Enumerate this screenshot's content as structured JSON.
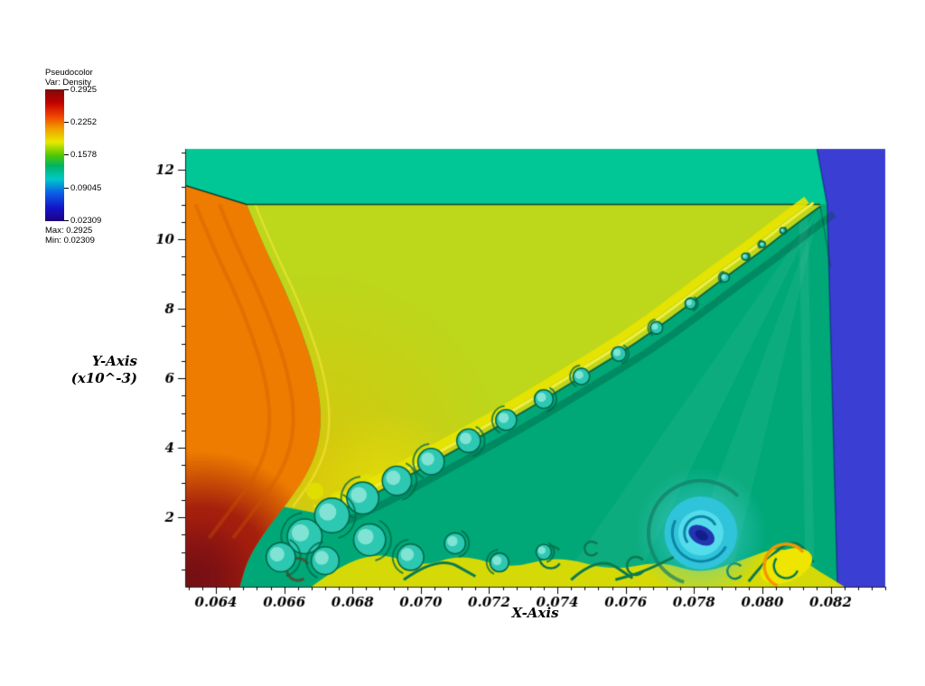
{
  "legend": {
    "title": "Pseudocolor",
    "subtitle": "Var: Density",
    "ticks": [
      "0.2925",
      "0.2252",
      "0.1578",
      "0.09045",
      "0.02309"
    ],
    "max_label": "Max: 0.2925",
    "min_label": "Min: 0.02309"
  },
  "chart_data": {
    "type": "heatmap",
    "title": "",
    "variable": "Density",
    "xlabel": "X-Axis",
    "ylabel_line1": "Y-Axis",
    "ylabel_line2": "(x10^-3)",
    "xlim": [
      0.0631,
      0.0836
    ],
    "ylim": [
      0,
      12.6
    ],
    "x_major_ticks": [
      0.064,
      0.066,
      0.068,
      0.07,
      0.072,
      0.074,
      0.076,
      0.078,
      0.08,
      0.082
    ],
    "x_tick_labels": [
      "0.064",
      "0.066",
      "0.068",
      "0.070",
      "0.072",
      "0.074",
      "0.076",
      "0.078",
      "0.080",
      "0.082"
    ],
    "x_minor_step": 0.0004,
    "y_major_ticks": [
      2,
      4,
      6,
      8,
      10,
      12
    ],
    "y_tick_labels": [
      "2",
      "4",
      "6",
      "8",
      "10",
      "12"
    ],
    "y_minor_step": 0.5,
    "value_min": 0.02309,
    "value_max": 0.2925,
    "colormap_stops": [
      [
        0,
        "#1c0080"
      ],
      [
        0.1,
        "#1414c8"
      ],
      [
        0.22,
        "#0a64e6"
      ],
      [
        0.32,
        "#00c8c8"
      ],
      [
        0.42,
        "#00b464"
      ],
      [
        0.5,
        "#50c800"
      ],
      [
        0.6,
        "#e8e800"
      ],
      [
        0.7,
        "#f0a000"
      ],
      [
        0.8,
        "#f04000"
      ],
      [
        0.9,
        "#c00000"
      ],
      [
        1,
        "#7d0b0b"
      ]
    ],
    "description": "Double Mach reflection density pseudocolor: curved bow shock with orange/dark-red high-density region at left, chartreuse post-shock wedge, teal undisturbed band above y=11, indigo low-density column at right (x>0.082), Kelvin-Helmholtz vortex chain along the slip line from the triple point near (0.0817, 11), and a cyan low-density vortex with dark-blue core near (0.078, 1.6).",
    "features": {
      "ambient_green": "#00a878",
      "top_band_color": "#00c795",
      "top_band": {
        "y_bottom": 11.0,
        "left_tip_x": 0.0649,
        "left_edge_y": 11.55
      },
      "right_band_color": "#3a3ed2",
      "right_band": {
        "x_top": 0.0816,
        "x_at_11": 0.0819,
        "x_bottom": 0.0822
      },
      "wedge_color": "#bdd71b",
      "slip_fringe": "#e8e400",
      "slip_fringe_bright": "#f2ee40",
      "slip_dark": "rgba(0,80,55,0.8)",
      "shock_curve": [
        [
          0.0649,
          11.0
        ],
        [
          0.0654,
          9.8
        ],
        [
          0.066,
          8.6
        ],
        [
          0.0665,
          7.4
        ],
        [
          0.0669,
          6.2
        ],
        [
          0.0671,
          5.0
        ],
        [
          0.067,
          4.0
        ],
        [
          0.0666,
          3.1
        ],
        [
          0.066,
          2.3
        ],
        [
          0.0653,
          1.4
        ],
        [
          0.0649,
          0.7
        ],
        [
          0.0647,
          0.0
        ]
      ],
      "wedge_left_points": 9,
      "slip_line": [
        [
          0.0817,
          10.95
        ],
        [
          0.0808,
          10.3
        ],
        [
          0.0799,
          9.6
        ],
        [
          0.0789,
          8.9
        ],
        [
          0.0777,
          8.0
        ],
        [
          0.0763,
          7.0
        ],
        [
          0.0748,
          6.1
        ],
        [
          0.0733,
          5.2
        ],
        [
          0.0718,
          4.35
        ],
        [
          0.0704,
          3.6
        ],
        [
          0.0691,
          2.9
        ],
        [
          0.0681,
          2.4
        ],
        [
          0.0673,
          2.05
        ]
      ],
      "orange_base": "#ee7c00",
      "orange_streak": "rgba(205,90,0,0.35)",
      "dark_red": "#8d1113",
      "dark_red_center": [
        0.0636,
        0.3
      ],
      "dark_red_radius": 3.6,
      "edge_line": "rgba(0,45,35,0.85)",
      "blue_edge_line": "rgba(10,40,110,0.6)",
      "vortex_fill": "#2cc8b2",
      "vortex_core": "#8fe8d8",
      "vortex_ring": "#00684a",
      "vortices": [
        [
          0.0806,
          10.25,
          0.08
        ],
        [
          0.08,
          9.85,
          0.09
        ],
        [
          0.0795,
          9.5,
          0.1
        ],
        [
          0.0789,
          8.9,
          0.13
        ],
        [
          0.0779,
          8.15,
          0.16
        ],
        [
          0.0769,
          7.45,
          0.18
        ],
        [
          0.0758,
          6.7,
          0.21
        ],
        [
          0.0747,
          6.05,
          0.24
        ],
        [
          0.0736,
          5.4,
          0.27
        ],
        [
          0.0725,
          4.8,
          0.3
        ],
        [
          0.0714,
          4.2,
          0.34
        ],
        [
          0.0703,
          3.6,
          0.38
        ],
        [
          0.0693,
          3.05,
          0.42
        ],
        [
          0.0683,
          2.55,
          0.46
        ],
        [
          0.0674,
          2.05,
          0.5
        ],
        [
          0.0666,
          1.45,
          0.5
        ],
        [
          0.0659,
          0.85,
          0.42
        ],
        [
          0.0672,
          0.75,
          0.4
        ],
        [
          0.0685,
          1.35,
          0.46
        ],
        [
          0.0697,
          0.85,
          0.38
        ],
        [
          0.071,
          1.25,
          0.3
        ],
        [
          0.0723,
          0.7,
          0.27
        ],
        [
          0.0736,
          1.0,
          0.22
        ]
      ],
      "bottom_band_color": "#e0dc00",
      "bottom_band": [
        [
          0.0668,
          0.0
        ],
        [
          0.0676,
          0.6
        ],
        [
          0.0688,
          1.0
        ],
        [
          0.07,
          0.55
        ],
        [
          0.0712,
          0.95
        ],
        [
          0.0726,
          0.5
        ],
        [
          0.074,
          0.9
        ],
        [
          0.0756,
          0.45
        ],
        [
          0.077,
          0.75
        ],
        [
          0.0782,
          0.35
        ],
        [
          0.0795,
          0.8
        ],
        [
          0.0806,
          1.2
        ],
        [
          0.0814,
          0.6
        ],
        [
          0.082,
          0.25
        ],
        [
          0.0824,
          0.0
        ]
      ],
      "swirl_stroke": "#0a7a50",
      "swirl_circles": [
        [
          0.0738,
          0.85,
          0.32
        ],
        [
          0.0763,
          0.6,
          0.26
        ],
        [
          0.075,
          1.1,
          0.2
        ],
        [
          0.0792,
          0.45,
          0.22
        ]
      ],
      "filaments": [
        [
          [
            0.0695,
            0.2
          ],
          [
            0.0705,
            0.9
          ],
          [
            0.0716,
            0.3
          ]
        ],
        [
          [
            0.0744,
            0.2
          ],
          [
            0.0752,
            0.9
          ],
          [
            0.0762,
            0.25
          ]
        ],
        [
          [
            0.0796,
            0.15
          ],
          [
            0.0802,
            0.9
          ],
          [
            0.081,
            1.4
          ],
          [
            0.0815,
            0.7
          ]
        ]
      ],
      "yellow_tongues": [
        [
          0.0684,
          2.9,
          0.35
        ],
        [
          0.0676,
          2.45,
          0.3
        ],
        [
          0.0669,
          2.75,
          0.25
        ]
      ],
      "maroon_swirl": [
        0.0664,
        0.5,
        0.32
      ],
      "cyan_vortex": {
        "x": 0.0782,
        "y": 1.55,
        "r": 1.05,
        "halo_r": 1.9,
        "outer": "#2fc4da",
        "inner": "#55dcec",
        "core": "#2136ae",
        "core_dark": "#121e8c"
      },
      "yellow_curl": {
        "x": 0.0807,
        "y": 0.6,
        "rx": 0.0008,
        "ry": 0.45,
        "fill": "#eee600",
        "orange": "#f09800"
      },
      "green_streaks": [
        [
          [
            0.0817,
            10.95
          ],
          [
            0.074,
            0.0
          ],
          [
            0.0762,
            0.0
          ]
        ],
        [
          [
            0.0817,
            10.95
          ],
          [
            0.0775,
            0.0
          ],
          [
            0.079,
            0.0
          ]
        ]
      ],
      "triple_point_line": [
        [
          0.0817,
          10.95
        ],
        [
          0.082,
          9.2
        ]
      ]
    }
  }
}
